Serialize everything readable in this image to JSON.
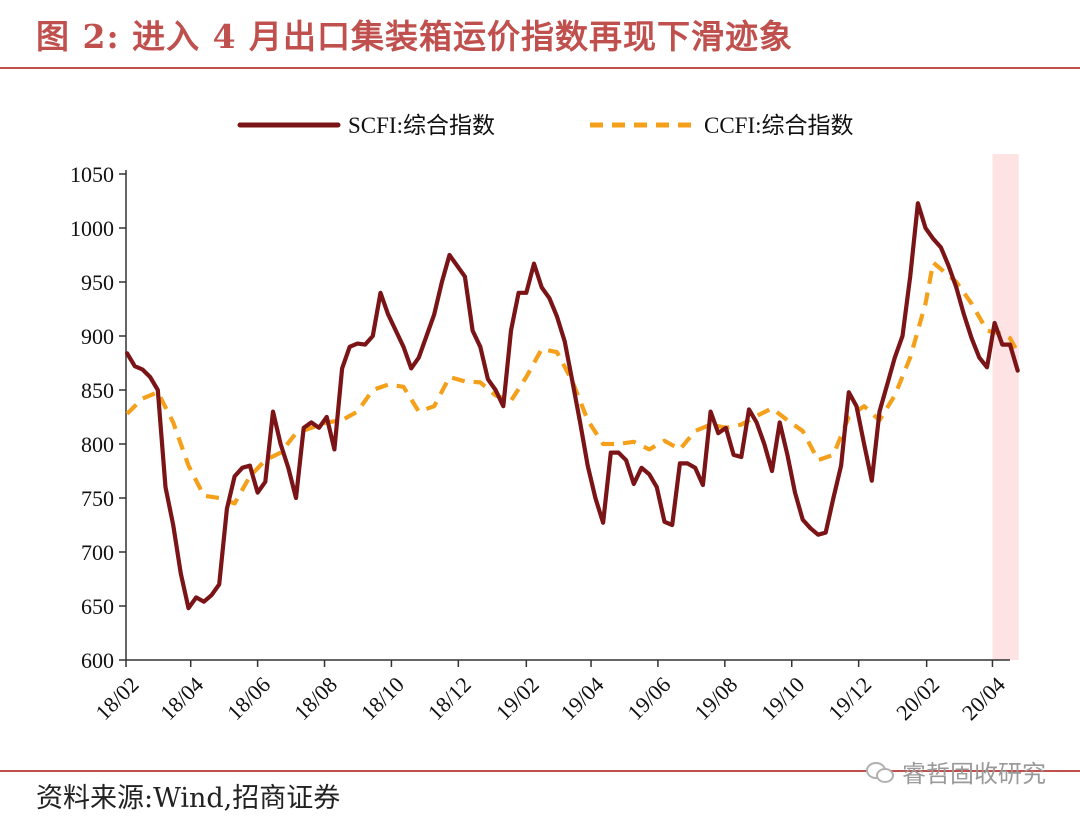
{
  "header": {
    "title": "图 2: 进入 4 月出口集装箱运价指数再现下滑迹象"
  },
  "footer": {
    "source": "资料来源:Wind,招商证券",
    "watermark": "睿哲固收研究"
  },
  "icons": {
    "watermark_icon": "wechat-icon"
  },
  "colors": {
    "scfi": "#7b1416",
    "ccfi": "#f5a01a",
    "highlight": "#fde3e3",
    "rule": "#c0504d"
  },
  "chart_data": {
    "type": "line",
    "title": "",
    "xlabel": "",
    "ylabel": "",
    "ylim": [
      600,
      1050
    ],
    "yticks": [
      600,
      650,
      700,
      750,
      800,
      850,
      900,
      950,
      1000,
      1050
    ],
    "xticks": [
      "18/02",
      "18/04",
      "18/06",
      "18/08",
      "18/10",
      "18/12",
      "19/02",
      "19/04",
      "19/06",
      "19/08",
      "19/10",
      "19/12",
      "20/02",
      "20/04"
    ],
    "x_range": [
      "2018-02-01",
      "2020-04-17"
    ],
    "highlight_range": [
      "2020-04-01",
      "2020-04-25"
    ],
    "legend_position": "top",
    "grid": false,
    "series": [
      {
        "name": "SCFI:综合指数",
        "style": "solid",
        "points": [
          [
            "2018-02-02",
            884
          ],
          [
            "2018-02-09",
            872
          ],
          [
            "2018-02-16",
            869
          ],
          [
            "2018-02-23",
            862
          ],
          [
            "2018-03-02",
            850
          ],
          [
            "2018-03-09",
            760
          ],
          [
            "2018-03-16",
            725
          ],
          [
            "2018-03-23",
            680
          ],
          [
            "2018-03-30",
            648
          ],
          [
            "2018-04-06",
            658
          ],
          [
            "2018-04-13",
            654
          ],
          [
            "2018-04-20",
            660
          ],
          [
            "2018-04-27",
            670
          ],
          [
            "2018-05-04",
            740
          ],
          [
            "2018-05-11",
            770
          ],
          [
            "2018-05-18",
            778
          ],
          [
            "2018-05-25",
            780
          ],
          [
            "2018-06-01",
            755
          ],
          [
            "2018-06-08",
            765
          ],
          [
            "2018-06-15",
            830
          ],
          [
            "2018-06-22",
            800
          ],
          [
            "2018-06-29",
            778
          ],
          [
            "2018-07-06",
            750
          ],
          [
            "2018-07-13",
            815
          ],
          [
            "2018-07-20",
            820
          ],
          [
            "2018-07-27",
            815
          ],
          [
            "2018-08-03",
            825
          ],
          [
            "2018-08-10",
            795
          ],
          [
            "2018-08-17",
            870
          ],
          [
            "2018-08-24",
            890
          ],
          [
            "2018-08-31",
            893
          ],
          [
            "2018-09-07",
            892
          ],
          [
            "2018-09-14",
            900
          ],
          [
            "2018-09-21",
            940
          ],
          [
            "2018-09-28",
            920
          ],
          [
            "2018-10-05",
            905
          ],
          [
            "2018-10-12",
            890
          ],
          [
            "2018-10-19",
            870
          ],
          [
            "2018-10-26",
            880
          ],
          [
            "2018-11-02",
            900
          ],
          [
            "2018-11-09",
            920
          ],
          [
            "2018-11-16",
            950
          ],
          [
            "2018-11-23",
            975
          ],
          [
            "2018-11-30",
            965
          ],
          [
            "2018-12-07",
            955
          ],
          [
            "2018-12-14",
            905
          ],
          [
            "2018-12-21",
            890
          ],
          [
            "2018-12-28",
            860
          ],
          [
            "2019-01-04",
            850
          ],
          [
            "2019-01-11",
            835
          ],
          [
            "2019-01-18",
            905
          ],
          [
            "2019-01-25",
            940
          ],
          [
            "2019-02-01",
            940
          ],
          [
            "2019-02-08",
            967
          ],
          [
            "2019-02-15",
            945
          ],
          [
            "2019-02-22",
            935
          ],
          [
            "2019-03-01",
            918
          ],
          [
            "2019-03-08",
            895
          ],
          [
            "2019-03-15",
            858
          ],
          [
            "2019-03-22",
            820
          ],
          [
            "2019-03-29",
            780
          ],
          [
            "2019-04-05",
            750
          ],
          [
            "2019-04-12",
            727
          ],
          [
            "2019-04-19",
            792
          ],
          [
            "2019-04-26",
            792
          ],
          [
            "2019-05-03",
            785
          ],
          [
            "2019-05-10",
            763
          ],
          [
            "2019-05-17",
            778
          ],
          [
            "2019-05-24",
            772
          ],
          [
            "2019-05-31",
            760
          ],
          [
            "2019-06-07",
            728
          ],
          [
            "2019-06-14",
            725
          ],
          [
            "2019-06-21",
            782
          ],
          [
            "2019-06-28",
            782
          ],
          [
            "2019-07-05",
            778
          ],
          [
            "2019-07-12",
            762
          ],
          [
            "2019-07-19",
            830
          ],
          [
            "2019-07-26",
            810
          ],
          [
            "2019-08-02",
            815
          ],
          [
            "2019-08-09",
            790
          ],
          [
            "2019-08-16",
            788
          ],
          [
            "2019-08-23",
            832
          ],
          [
            "2019-08-30",
            820
          ],
          [
            "2019-09-06",
            800
          ],
          [
            "2019-09-13",
            775
          ],
          [
            "2019-09-20",
            820
          ],
          [
            "2019-09-27",
            790
          ],
          [
            "2019-10-04",
            755
          ],
          [
            "2019-10-11",
            730
          ],
          [
            "2019-10-18",
            722
          ],
          [
            "2019-10-25",
            716
          ],
          [
            "2019-11-01",
            718
          ],
          [
            "2019-11-08",
            750
          ],
          [
            "2019-11-15",
            780
          ],
          [
            "2019-11-22",
            848
          ],
          [
            "2019-11-29",
            835
          ],
          [
            "2019-12-06",
            800
          ],
          [
            "2019-12-13",
            766
          ],
          [
            "2019-12-20",
            830
          ],
          [
            "2019-12-27",
            855
          ],
          [
            "2020-01-03",
            880
          ],
          [
            "2020-01-10",
            900
          ],
          [
            "2020-01-17",
            955
          ],
          [
            "2020-01-24",
            1023
          ],
          [
            "2020-01-31",
            1000
          ],
          [
            "2020-02-07",
            990
          ],
          [
            "2020-02-14",
            982
          ],
          [
            "2020-02-21",
            965
          ],
          [
            "2020-02-28",
            945
          ],
          [
            "2020-03-06",
            920
          ],
          [
            "2020-03-13",
            898
          ],
          [
            "2020-03-20",
            880
          ],
          [
            "2020-03-27",
            871
          ],
          [
            "2020-04-03",
            912
          ],
          [
            "2020-04-10",
            892
          ],
          [
            "2020-04-17",
            892
          ],
          [
            "2020-04-24",
            868
          ]
        ]
      },
      {
        "name": "CCFI:综合指数",
        "style": "dashed",
        "points": [
          [
            "2018-02-02",
            828
          ],
          [
            "2018-02-16",
            842
          ],
          [
            "2018-03-02",
            848
          ],
          [
            "2018-03-16",
            820
          ],
          [
            "2018-03-30",
            780
          ],
          [
            "2018-04-13",
            752
          ],
          [
            "2018-04-27",
            750
          ],
          [
            "2018-05-11",
            745
          ],
          [
            "2018-05-25",
            770
          ],
          [
            "2018-06-08",
            785
          ],
          [
            "2018-06-22",
            792
          ],
          [
            "2018-07-06",
            810
          ],
          [
            "2018-07-20",
            815
          ],
          [
            "2018-08-03",
            820
          ],
          [
            "2018-08-17",
            822
          ],
          [
            "2018-08-31",
            830
          ],
          [
            "2018-09-14",
            850
          ],
          [
            "2018-09-28",
            855
          ],
          [
            "2018-10-12",
            853
          ],
          [
            "2018-10-26",
            830
          ],
          [
            "2018-11-09",
            835
          ],
          [
            "2018-11-23",
            862
          ],
          [
            "2018-12-07",
            858
          ],
          [
            "2018-12-21",
            857
          ],
          [
            "2019-01-04",
            845
          ],
          [
            "2019-01-18",
            840
          ],
          [
            "2019-02-01",
            862
          ],
          [
            "2019-02-15",
            888
          ],
          [
            "2019-03-01",
            885
          ],
          [
            "2019-03-15",
            858
          ],
          [
            "2019-03-29",
            822
          ],
          [
            "2019-04-12",
            800
          ],
          [
            "2019-04-26",
            800
          ],
          [
            "2019-05-10",
            802
          ],
          [
            "2019-05-24",
            795
          ],
          [
            "2019-06-07",
            803
          ],
          [
            "2019-06-21",
            795
          ],
          [
            "2019-07-05",
            812
          ],
          [
            "2019-07-19",
            818
          ],
          [
            "2019-08-02",
            815
          ],
          [
            "2019-08-16",
            818
          ],
          [
            "2019-08-30",
            826
          ],
          [
            "2019-09-13",
            833
          ],
          [
            "2019-09-27",
            822
          ],
          [
            "2019-10-11",
            812
          ],
          [
            "2019-10-25",
            785
          ],
          [
            "2019-11-08",
            790
          ],
          [
            "2019-11-22",
            825
          ],
          [
            "2019-12-06",
            835
          ],
          [
            "2019-12-20",
            822
          ],
          [
            "2020-01-03",
            845
          ],
          [
            "2020-01-17",
            880
          ],
          [
            "2020-01-31",
            930
          ],
          [
            "2020-02-07",
            968
          ],
          [
            "2020-02-14",
            962
          ],
          [
            "2020-02-28",
            950
          ],
          [
            "2020-03-13",
            930
          ],
          [
            "2020-03-27",
            905
          ],
          [
            "2020-04-10",
            902
          ],
          [
            "2020-04-17",
            898
          ],
          [
            "2020-04-24",
            885
          ]
        ]
      }
    ]
  }
}
